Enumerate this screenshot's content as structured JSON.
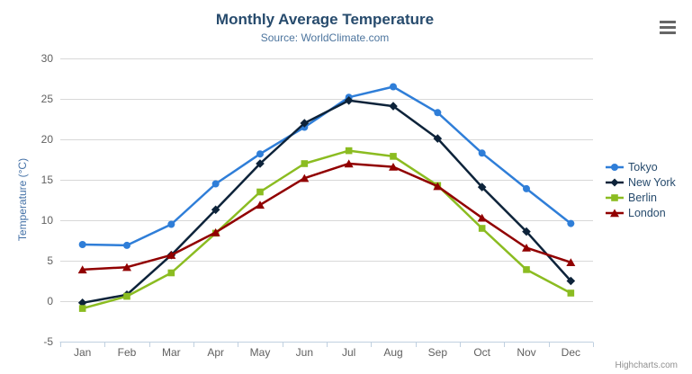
{
  "header": {
    "title": "Monthly Average Temperature",
    "subtitle": "Source: WorldClimate.com"
  },
  "credits": "Highcharts.com",
  "menu_icon": "hamburger-icon",
  "colors": {
    "title": "#274b6d",
    "subtitle": "#4d759e",
    "axis_title": "#4572a7",
    "axis_labels": "#606060",
    "gridline": "#d8d8d8",
    "axis_line": "#c0d0e0",
    "legend_text": "#274b6d",
    "menu_icon": "#666666",
    "credits_text": "#909090"
  },
  "chart_data": {
    "type": "line",
    "title": "Monthly Average Temperature",
    "subtitle": "Source: WorldClimate.com",
    "categories": [
      "Jan",
      "Feb",
      "Mar",
      "Apr",
      "May",
      "Jun",
      "Jul",
      "Aug",
      "Sep",
      "Oct",
      "Nov",
      "Dec"
    ],
    "series": [
      {
        "name": "Tokyo",
        "color": "#2f7ed8",
        "marker": "circle",
        "values": [
          7.0,
          6.9,
          9.5,
          14.5,
          18.2,
          21.5,
          25.2,
          26.5,
          23.3,
          18.3,
          13.9,
          9.6
        ]
      },
      {
        "name": "New York",
        "color": "#0d233a",
        "marker": "diamond",
        "values": [
          -0.2,
          0.8,
          5.7,
          11.3,
          17.0,
          22.0,
          24.8,
          24.1,
          20.1,
          14.1,
          8.6,
          2.5
        ]
      },
      {
        "name": "Berlin",
        "color": "#8bbc21",
        "marker": "square",
        "values": [
          -0.9,
          0.6,
          3.5,
          8.4,
          13.5,
          17.0,
          18.6,
          17.9,
          14.3,
          9.0,
          3.9,
          1.0
        ]
      },
      {
        "name": "London",
        "color": "#910000",
        "marker": "triangle",
        "values": [
          3.9,
          4.2,
          5.7,
          8.5,
          11.9,
          15.2,
          17.0,
          16.6,
          14.2,
          10.3,
          6.6,
          4.8
        ]
      }
    ],
    "xlabel": "",
    "ylabel": "Temperature (°C)",
    "ylim": [
      -5,
      30
    ],
    "ytick_interval": 5,
    "grid": true,
    "legend_position": "right"
  }
}
